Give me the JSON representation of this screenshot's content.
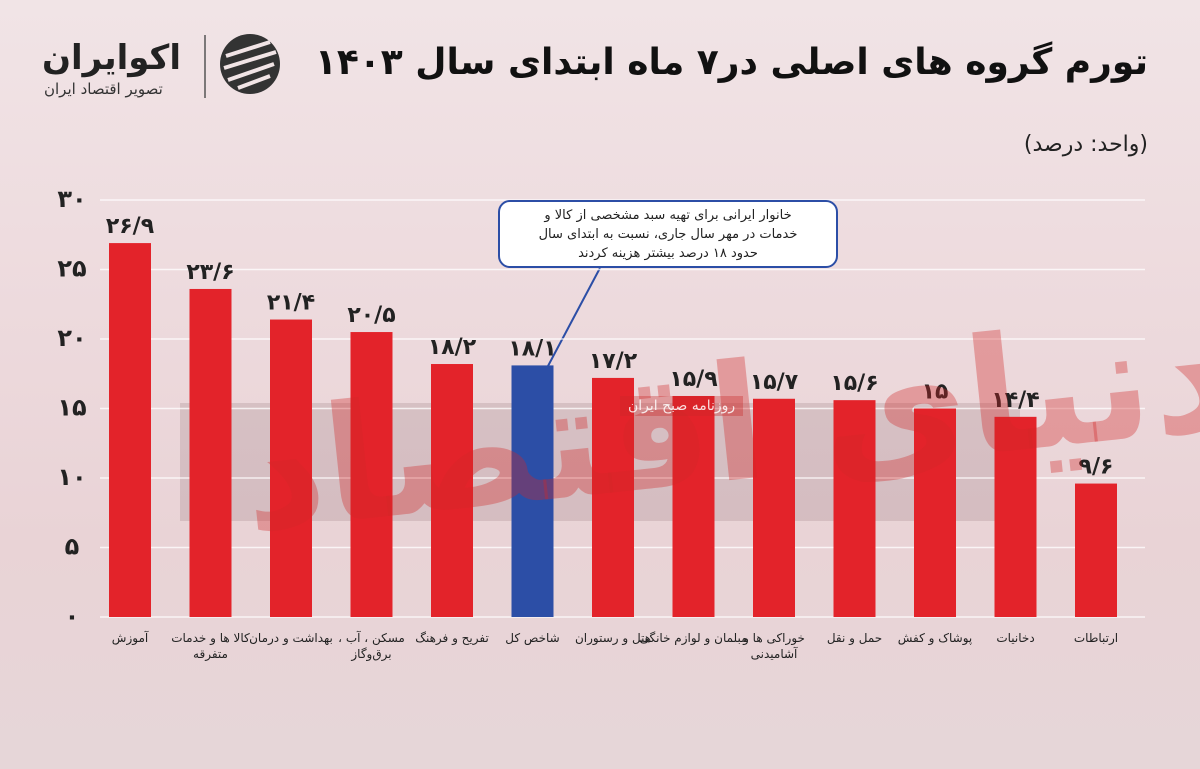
{
  "logo": {
    "name": "اکوایران",
    "tagline": "تصویر اقتصاد ایران"
  },
  "watermarks": [
    "دنیای اقتصاد",
    "روزنامه صبح ایران"
  ],
  "chart_data": {
    "type": "bar",
    "title": "تورم گروه های اصلی در۷ ماه ابتدای سال ۱۴۰۳",
    "subtitle": "(واحد: درصد)",
    "annotation": [
      "خانوار ایرانی برای تهیه سبد مشخصی از کالا و",
      "خدمات در مهر سال جاری، نسبت به ابتدای سال",
      "حدود ۱۸ درصد بیشتر هزینه کردند"
    ],
    "categories": [
      "آموزش",
      "کالا ها و خدمات متفرقه",
      "بهداشت و درمان",
      "مسکن ، آب ، برق‌وگاز",
      "تفریح و فرهنگ",
      "شاخص کل",
      "هتل و رستوران",
      "مبلمان و لوازم خانگی",
      "خوراکی ها و آشامیدنی",
      "حمل و نقل",
      "پوشاک و کفش",
      "دخانیات",
      "ارتباطات"
    ],
    "values": [
      26.9,
      23.6,
      21.4,
      20.5,
      18.2,
      18.1,
      17.2,
      15.9,
      15.7,
      15.6,
      15,
      14.4,
      9.6
    ],
    "value_labels": [
      "۲۶/۹",
      "۲۳/۶",
      "۲۱/۴",
      "۲۰/۵",
      "۱۸/۲",
      "۱۸/۱",
      "۱۷/۲",
      "۱۵/۹",
      "۱۵/۷",
      "۱۵/۶",
      "۱۵",
      "۱۴/۴",
      "۹/۶"
    ],
    "colors": [
      "#e3232a",
      "#e3232a",
      "#e3232a",
      "#e3232a",
      "#e3232a",
      "#2c4ea6",
      "#e3232a",
      "#e3232a",
      "#e3232a",
      "#e3232a",
      "#e3232a",
      "#e3232a",
      "#e3232a"
    ],
    "ylim": [
      0,
      30
    ],
    "yticks": [
      {
        "value": 0,
        "label": "۰"
      },
      {
        "value": 5,
        "label": "۵"
      },
      {
        "value": 10,
        "label": "۱۰"
      },
      {
        "value": 15,
        "label": "۱۵"
      },
      {
        "value": 20,
        "label": "۲۰"
      },
      {
        "value": 25,
        "label": "۲۵"
      },
      {
        "value": 30,
        "label": "۳۰"
      }
    ],
    "grid": true
  }
}
